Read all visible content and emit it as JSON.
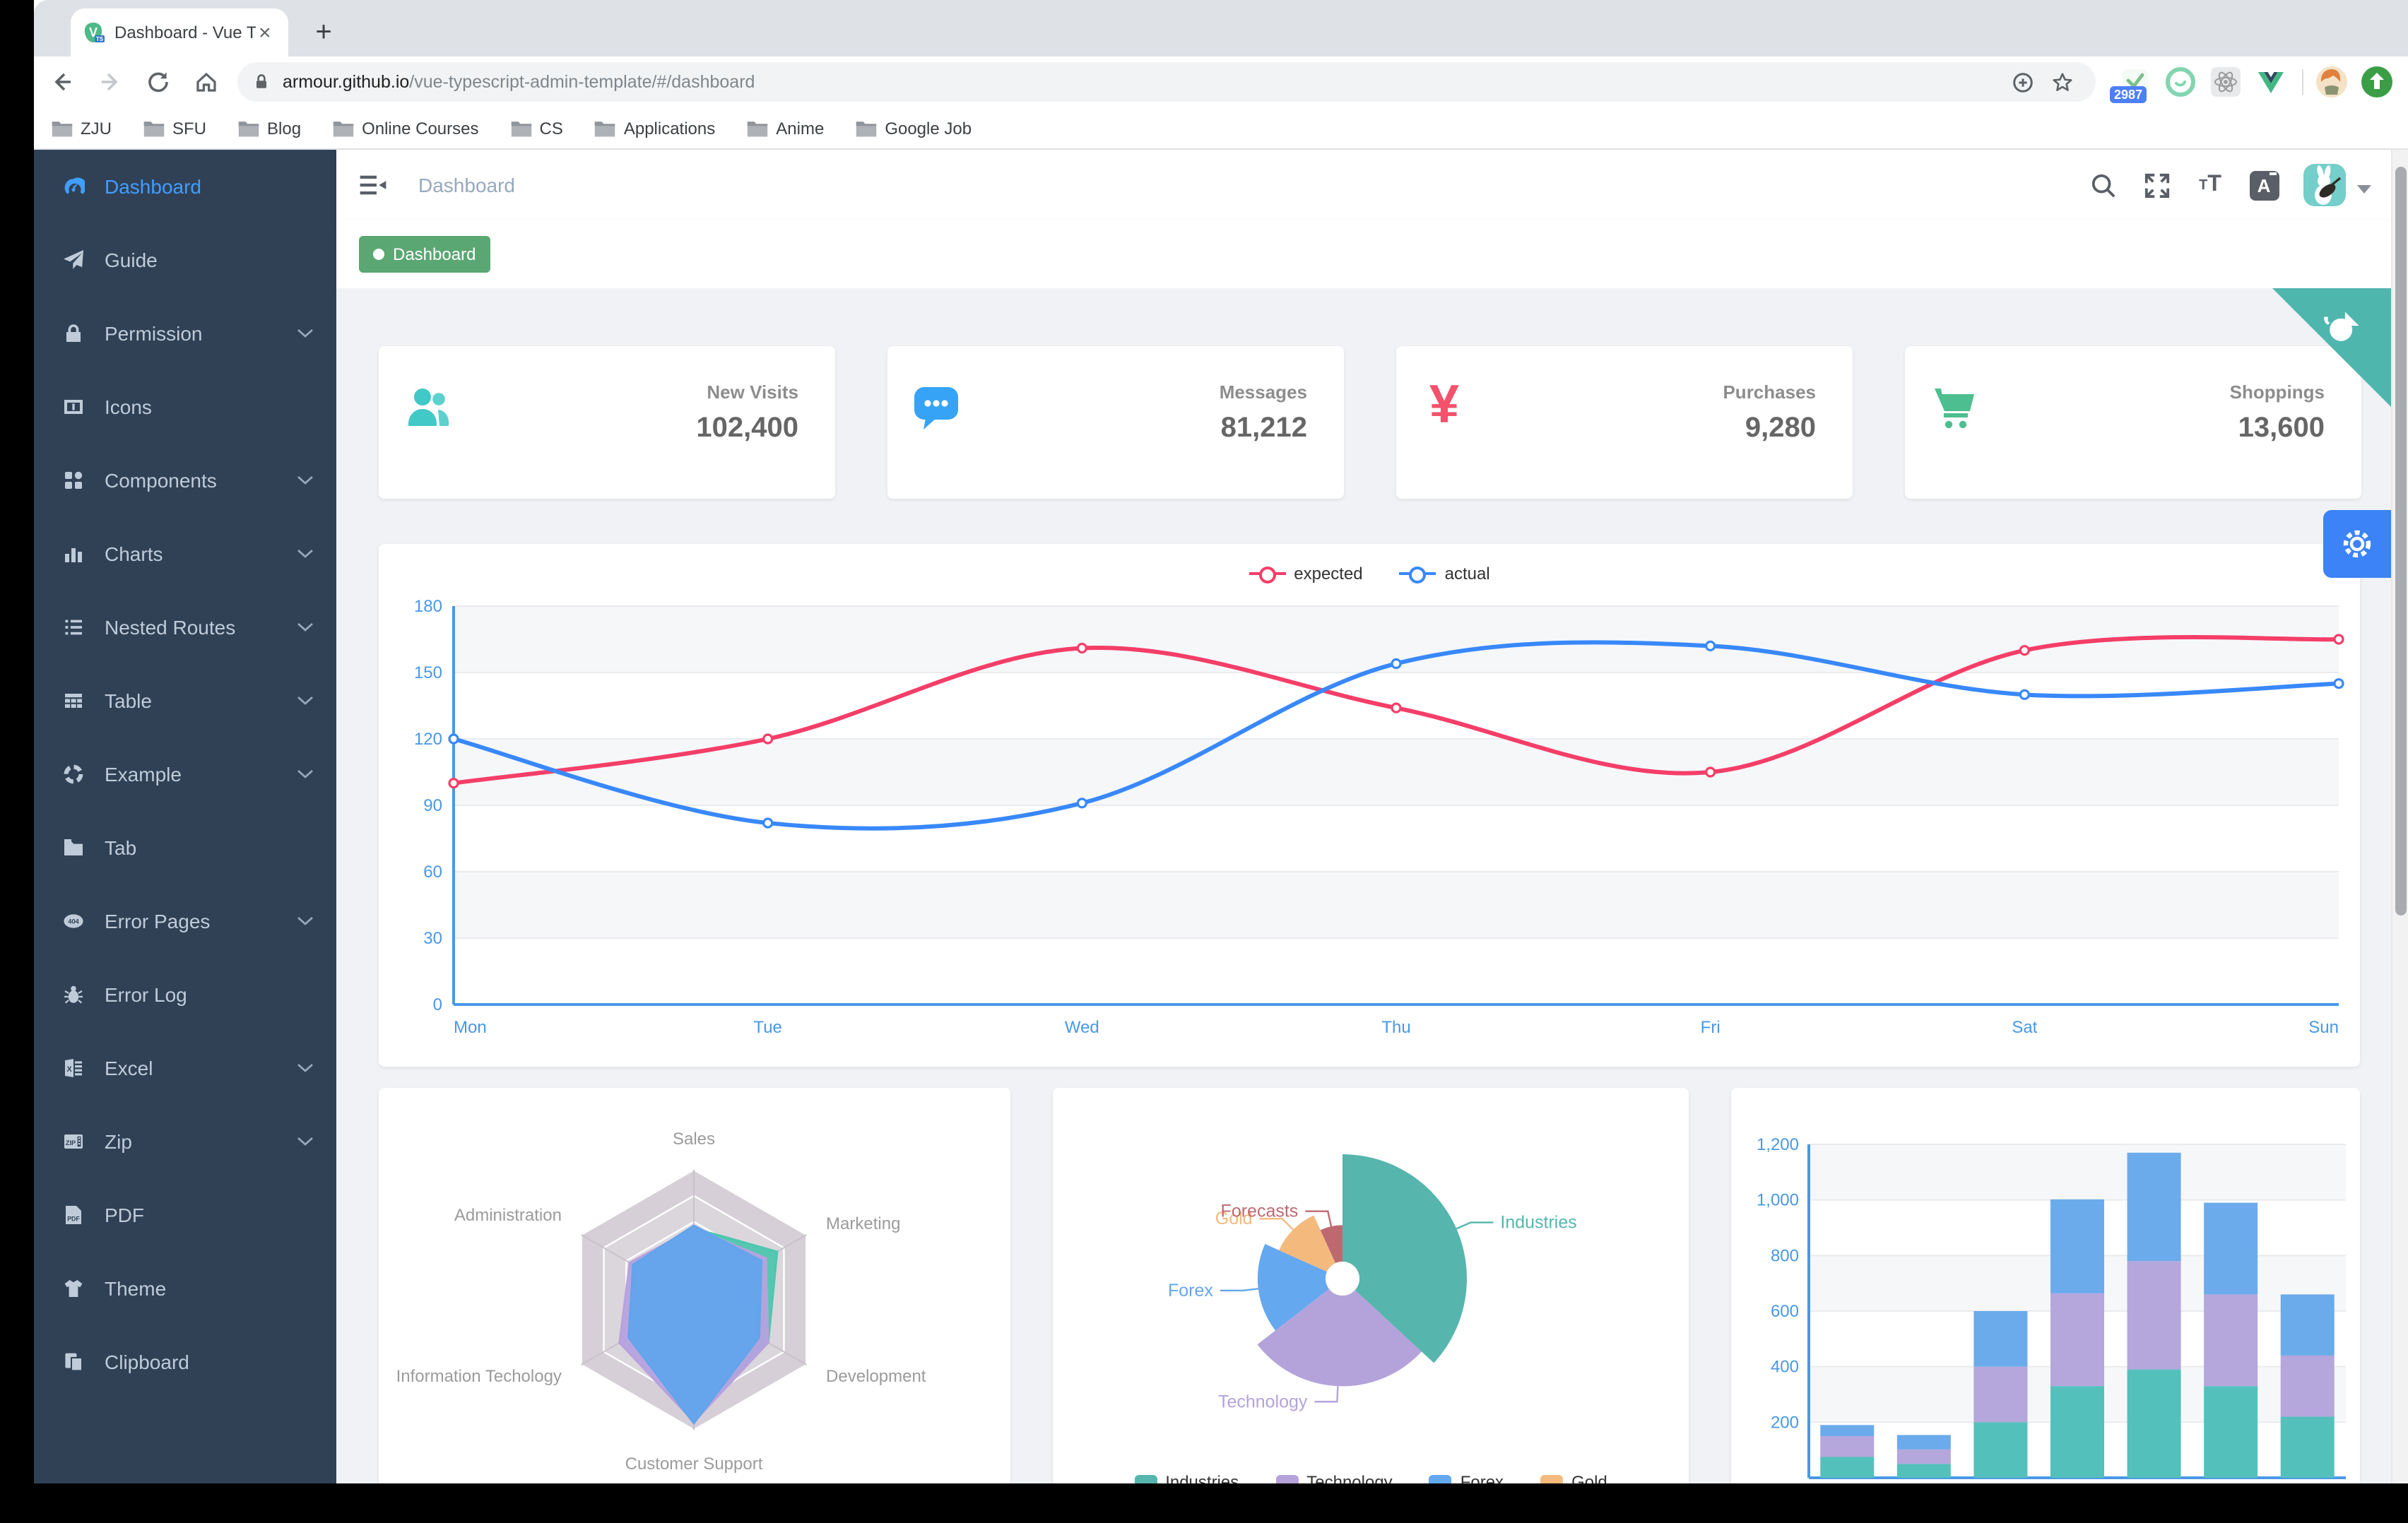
{
  "browser": {
    "tab": {
      "title": "Dashboard - Vue Typescript Ad",
      "favicon": "vue-ts-icon",
      "close": "×",
      "new_tab": "+"
    },
    "url": {
      "domain": "armour.github.io",
      "path": "/vue-typescript-admin-template/#/dashboard"
    },
    "bookmarks": [
      "ZJU",
      "SFU",
      "Blog",
      "Online Courses",
      "CS",
      "Applications",
      "Anime",
      "Google Job"
    ],
    "extensions": {
      "badge": "2987"
    }
  },
  "sidebar": {
    "bg": "#304156",
    "active_color": "#409EFF",
    "text_color": "#BFCBD9",
    "items": [
      {
        "label": "Dashboard",
        "icon": "dashboard-icon",
        "active": true,
        "expandable": false
      },
      {
        "label": "Guide",
        "icon": "guide-icon",
        "expandable": false
      },
      {
        "label": "Permission",
        "icon": "lock-icon",
        "expandable": true
      },
      {
        "label": "Icons",
        "icon": "icons-icon",
        "expandable": false
      },
      {
        "label": "Components",
        "icon": "components-icon",
        "expandable": true
      },
      {
        "label": "Charts",
        "icon": "charts-icon",
        "expandable": true
      },
      {
        "label": "Nested Routes",
        "icon": "nested-routes-icon",
        "expandable": true
      },
      {
        "label": "Table",
        "icon": "table-icon",
        "expandable": true
      },
      {
        "label": "Example",
        "icon": "example-icon",
        "expandable": true
      },
      {
        "label": "Tab",
        "icon": "tab-icon",
        "expandable": false
      },
      {
        "label": "Error Pages",
        "icon": "error-pages-icon",
        "expandable": true
      },
      {
        "label": "Error Log",
        "icon": "bug-icon",
        "expandable": false
      },
      {
        "label": "Excel",
        "icon": "excel-icon",
        "expandable": true
      },
      {
        "label": "Zip",
        "icon": "zip-icon",
        "expandable": true
      },
      {
        "label": "PDF",
        "icon": "pdf-icon",
        "expandable": false
      },
      {
        "label": "Theme",
        "icon": "theme-icon",
        "expandable": false
      },
      {
        "label": "Clipboard",
        "icon": "clipboard-icon",
        "expandable": false
      }
    ]
  },
  "navbar": {
    "breadcrumb": "Dashboard",
    "icons": [
      "search-icon",
      "fullscreen-icon",
      "text-size-icon",
      "translate-icon",
      "avatar",
      "caret-down-icon"
    ]
  },
  "tag": {
    "label": "Dashboard",
    "color": "#5BA773"
  },
  "stats": [
    {
      "title": "New Visits",
      "value": "102,400",
      "icon": "peoples-icon",
      "color": "#40C9C6"
    },
    {
      "title": "Messages",
      "value": "81,212",
      "icon": "message-icon",
      "color": "#36A3F7"
    },
    {
      "title": "Purchases",
      "value": "9,280",
      "icon": "money-icon",
      "color": "#F4516C"
    },
    {
      "title": "Shoppings",
      "value": "13,600",
      "icon": "shopping-icon",
      "color": "#4DBE8F"
    }
  ],
  "chart_data": [
    {
      "id": "weekly-line",
      "type": "line",
      "title": "",
      "categories": [
        "Mon",
        "Tue",
        "Wed",
        "Thu",
        "Fri",
        "Sat",
        "Sun"
      ],
      "series": [
        {
          "name": "expected",
          "color": "#F43E68",
          "values": [
            100,
            120,
            161,
            134,
            105,
            160,
            165
          ]
        },
        {
          "name": "actual",
          "color": "#3888FA",
          "values": [
            120,
            82,
            91,
            154,
            162,
            140,
            145
          ]
        }
      ],
      "ylim": [
        0,
        180
      ],
      "ytick_step": 30,
      "grid": true,
      "legend_position": "top-center",
      "axis_color": "#4898E8"
    },
    {
      "id": "radar",
      "type": "radar",
      "indicators": [
        "Sales",
        "Marketing",
        "Development",
        "Customer Support",
        "Information Techology",
        "Administration"
      ],
      "rings": 5,
      "label_color": "#9B9B9B",
      "series": [
        {
          "name": "",
          "color": "#4EC6AE",
          "values_pct": [
            0.55,
            0.74,
            0.66,
            0.9,
            0.55,
            0.55
          ]
        },
        {
          "name": "",
          "color": "#B6A2DE",
          "values_pct": [
            0.55,
            0.64,
            0.66,
            0.94,
            0.66,
            0.57
          ]
        },
        {
          "name": "",
          "color": "#62A4EC",
          "values_pct": [
            0.57,
            0.6,
            0.58,
            0.95,
            0.58,
            0.54
          ]
        }
      ]
    },
    {
      "id": "rose-pie",
      "type": "pie",
      "rose": true,
      "slices": [
        {
          "name": "Industries",
          "value": 320,
          "color": "#56B5AD"
        },
        {
          "name": "Technology",
          "value": 240,
          "color": "#B4A3DB"
        },
        {
          "name": "Forex",
          "value": 149,
          "color": "#64A8EF"
        },
        {
          "name": "Gold",
          "value": 100,
          "color": "#F4BA7D"
        },
        {
          "name": "Forecasts",
          "value": 59,
          "color": "#BE6970"
        }
      ],
      "legend": [
        "Industries",
        "Technology",
        "Forex",
        "Gold"
      ],
      "legend_position": "bottom"
    },
    {
      "id": "stacked-bar",
      "type": "bar",
      "stacked": true,
      "categories": [
        "",
        "",
        "",
        "",
        "",
        "",
        ""
      ],
      "series": [
        {
          "name": "",
          "color": "#54C0BB",
          "values": [
            75,
            50,
            200,
            330,
            390,
            330,
            220
          ]
        },
        {
          "name": "",
          "color": "#B5A6DC",
          "values": [
            75,
            52,
            200,
            334,
            390,
            330,
            220
          ]
        },
        {
          "name": "",
          "color": "#6BABEB",
          "values": [
            40,
            52,
            200,
            338,
            390,
            330,
            220
          ]
        }
      ],
      "ylim": [
        0,
        1200
      ],
      "ytick_step": 200,
      "axis_color": "#4898E8"
    }
  ]
}
